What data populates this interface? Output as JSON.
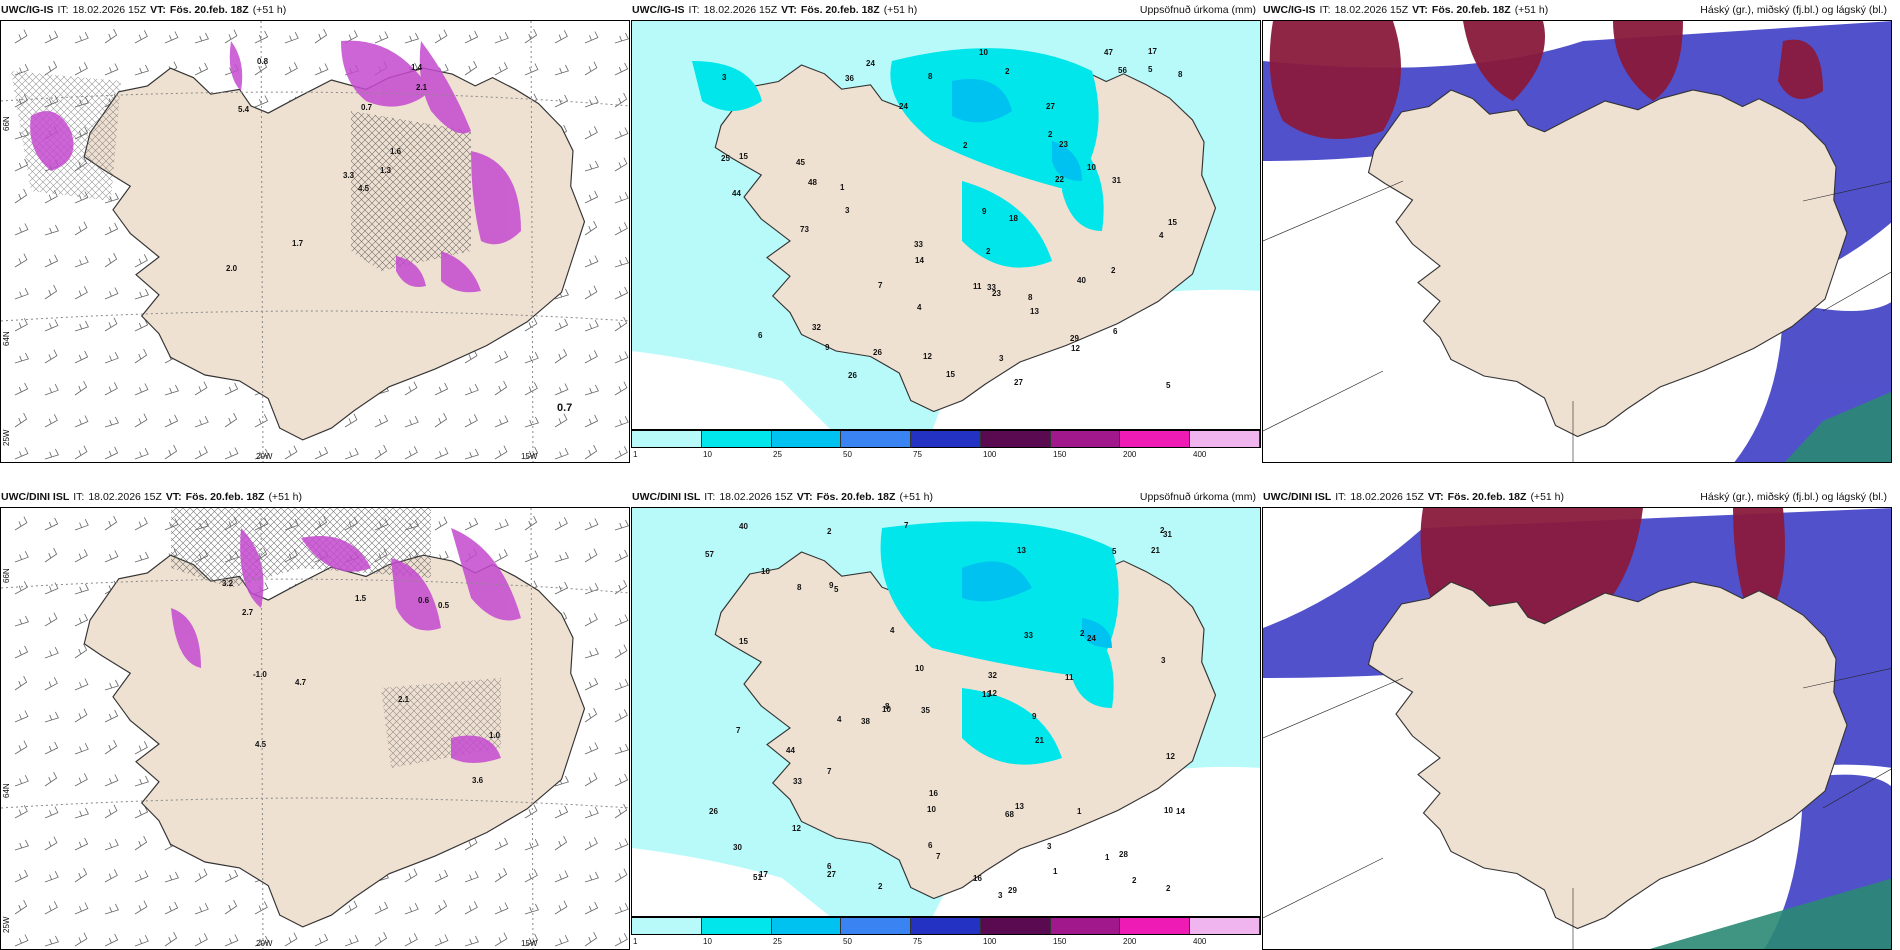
{
  "panels": [
    {
      "model": "UWC/IG-IS",
      "it_label": "IT:",
      "it": "18.02.2026 15Z",
      "vt_label": "VT:",
      "vt": "Fös. 20.feb. 18Z",
      "lead": "(+51 h)",
      "right": ""
    },
    {
      "model": "UWC/IG-IS",
      "it_label": "IT:",
      "it": "18.02.2026 15Z",
      "vt_label": "VT:",
      "vt": "Fös. 20.feb. 18Z",
      "lead": "(+51 h)",
      "right": "Uppsöfnuð úrkoma (mm)"
    },
    {
      "model": "UWC/IG-IS",
      "it_label": "IT:",
      "it": "18.02.2026 15Z",
      "vt_label": "VT:",
      "vt": "Fös. 20.feb. 18Z",
      "lead": "(+51 h)",
      "right": "Háský (gr.), miðský (fj.bl.) og lágský (bl.)"
    },
    {
      "model": "UWC/DINI ISL",
      "it_label": "IT:",
      "it": "18.02.2026 15Z",
      "vt_label": "VT:",
      "vt": "Fös. 20.feb. 18Z",
      "lead": "(+51 h)",
      "right": ""
    },
    {
      "model": "UWC/DINI ISL",
      "it_label": "IT:",
      "it": "18.02.2026 15Z",
      "vt_label": "VT:",
      "vt": "Fös. 20.feb. 18Z",
      "lead": "(+51 h)",
      "right": "Uppsöfnuð úrkoma (mm)"
    },
    {
      "model": "UWC/DINI ISL",
      "it_label": "IT:",
      "it": "18.02.2026 15Z",
      "vt_label": "VT:",
      "vt": "Fös. 20.feb. 18Z",
      "lead": "(+51 h)",
      "right": "Háský (gr.), miðský (fj.bl.) og lágský (bl.)"
    }
  ],
  "grid_labels": {
    "lon20": "20W",
    "lon15": "15W",
    "lat66": "66N",
    "lat64": "64N",
    "lat25": "25W"
  },
  "wind_value": "0.7",
  "colorbar": {
    "ticks": [
      "1",
      "10",
      "25",
      "50",
      "75",
      "100",
      "150",
      "200",
      "400"
    ],
    "colors": [
      "#b8fafa",
      "#00e6ea",
      "#00c2f0",
      "#3a83f2",
      "#2432c4",
      "#5a0a50",
      "#a0188c",
      "#ee1cb4",
      "#f0b4ee"
    ]
  },
  "precip_top": [
    "27",
    "36",
    "32",
    "45",
    "10",
    "3",
    "4",
    "3",
    "14",
    "9",
    "6",
    "25",
    "33",
    "33",
    "22",
    "47",
    "44",
    "56",
    "40",
    "31",
    "29",
    "23",
    "26",
    "12",
    "18",
    "23",
    "73",
    "48",
    "15",
    "24",
    "13",
    "17",
    "27",
    "26",
    "24",
    "12",
    "10",
    "15",
    "15",
    "8",
    "8",
    "9",
    "8",
    "6",
    "2",
    "2",
    "11",
    "4",
    "2",
    "5",
    "7",
    "2",
    "1",
    "2",
    "3",
    "5"
  ],
  "precip_bottom": [
    "2",
    "3",
    "6",
    "3",
    "2",
    "10",
    "4",
    "2",
    "7",
    "4",
    "5",
    "7",
    "8",
    "10",
    "13",
    "13",
    "15",
    "27",
    "38",
    "57",
    "68",
    "31",
    "32",
    "51",
    "24",
    "44",
    "26",
    "33",
    "40",
    "21",
    "35",
    "29",
    "16",
    "21",
    "12",
    "9",
    "10",
    "30",
    "33",
    "28",
    "12",
    "11",
    "14",
    "17",
    "5",
    "13",
    "12",
    "16",
    "8",
    "6",
    "2",
    "3",
    "2",
    "1",
    "7",
    "2",
    "10",
    "10",
    "9",
    "7",
    "1",
    "1"
  ],
  "wind_top_values": [
    "4.5",
    "5.4",
    "3.3",
    "2.0",
    "1.6",
    "1.7",
    "1.4",
    "0.7",
    "2.1",
    "1.3",
    "0.8"
  ],
  "wind_bottom_values": [
    "3.6",
    "-1.0",
    "2.1",
    "3.2",
    "1.0",
    "2.7",
    "4.5",
    "4.7",
    "0.5",
    "1.5",
    "0.6"
  ]
}
